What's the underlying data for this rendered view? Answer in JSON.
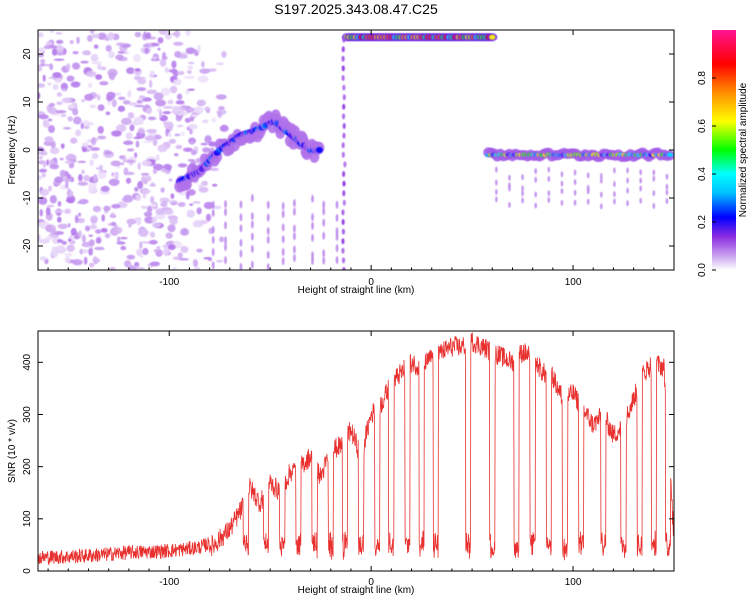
{
  "title": "S197.2025.343.08.47.C25",
  "chart_data": [
    {
      "type": "heatmap",
      "id": "spectrogram",
      "xlabel": "Height of straight line (km)",
      "ylabel": "Frequency (Hz)",
      "xlim": [
        -165,
        150
      ],
      "ylim": [
        -25,
        25
      ],
      "xticks": [
        -100,
        0,
        100
      ],
      "yticks": [
        -20,
        -10,
        0,
        10,
        20
      ],
      "xtick_labels": [
        "-100",
        "0",
        "100"
      ],
      "ytick_labels": [
        "-20",
        "-10",
        "0",
        "10",
        "20"
      ],
      "colorbar": {
        "label": "Normalized spectral amplitude",
        "range": [
          0,
          1
        ],
        "ticks": [
          0.0,
          0.2,
          0.4,
          0.6,
          0.8
        ],
        "tick_labels": [
          "0.0",
          "0.2",
          "0.4",
          "0.6",
          "0.8"
        ],
        "colors": [
          "#ffffff",
          "#c9a0f0",
          "#8a2be2",
          "#0000ff",
          "#00bfff",
          "#00ffff",
          "#00ff00",
          "#ffff00",
          "#ff8c00",
          "#ff0000",
          "#ff1493"
        ]
      },
      "features": [
        {
          "name": "noise-cloud",
          "x_range": [
            -165,
            -95
          ],
          "y_range": [
            -25,
            25
          ],
          "amplitude": 0.12
        },
        {
          "name": "rising-trace",
          "points": [
            [
              -95,
              -6.5
            ],
            [
              -85,
              -4.5
            ],
            [
              -75,
              0
            ],
            [
              -65,
              3
            ],
            [
              -55,
              4.5
            ],
            [
              -48,
              6
            ],
            [
              -42,
              4
            ],
            [
              -35,
              1.5
            ],
            [
              -30,
              0
            ],
            [
              -25,
              0
            ]
          ],
          "amplitude": 0.28
        },
        {
          "name": "upper-band",
          "x_range": [
            -12,
            60
          ],
          "y": 23.5,
          "amplitude": 0.7
        },
        {
          "name": "zero-band",
          "x_range": [
            58,
            148
          ],
          "y": -1,
          "amplitude": 0.5
        }
      ]
    },
    {
      "type": "line",
      "id": "snr",
      "xlabel": "Height of straight line (km)",
      "ylabel": "SNR (10 * v/v)",
      "xlim": [
        -165,
        150
      ],
      "ylim": [
        0,
        460
      ],
      "xticks": [
        -100,
        0,
        100
      ],
      "yticks": [
        0,
        100,
        200,
        300,
        400
      ],
      "xtick_labels": [
        "-100",
        "0",
        "100"
      ],
      "ytick_labels": [
        "0",
        "100",
        "200",
        "300",
        "400"
      ],
      "color": "#e8312f",
      "x": [
        -165,
        -150,
        -135,
        -120,
        -105,
        -95,
        -85,
        -78,
        -70,
        -64,
        -60,
        -55,
        -50,
        -45,
        -40,
        -35,
        -30,
        -25,
        -20,
        -15,
        -10,
        -5,
        0,
        5,
        10,
        15,
        20,
        25,
        30,
        35,
        40,
        45,
        50,
        55,
        60,
        65,
        70,
        75,
        80,
        85,
        90,
        95,
        100,
        105,
        110,
        115,
        120,
        125,
        130,
        135,
        140,
        145,
        150
      ],
      "values": [
        20,
        22,
        25,
        30,
        32,
        35,
        40,
        50,
        80,
        120,
        160,
        130,
        170,
        150,
        190,
        200,
        220,
        180,
        230,
        240,
        270,
        220,
        300,
        320,
        360,
        380,
        400,
        390,
        410,
        420,
        430,
        430,
        440,
        430,
        420,
        410,
        400,
        420,
        410,
        380,
        370,
        330,
        340,
        310,
        280,
        300,
        260,
        280,
        330,
        380,
        400,
        390,
        60
      ]
    }
  ]
}
